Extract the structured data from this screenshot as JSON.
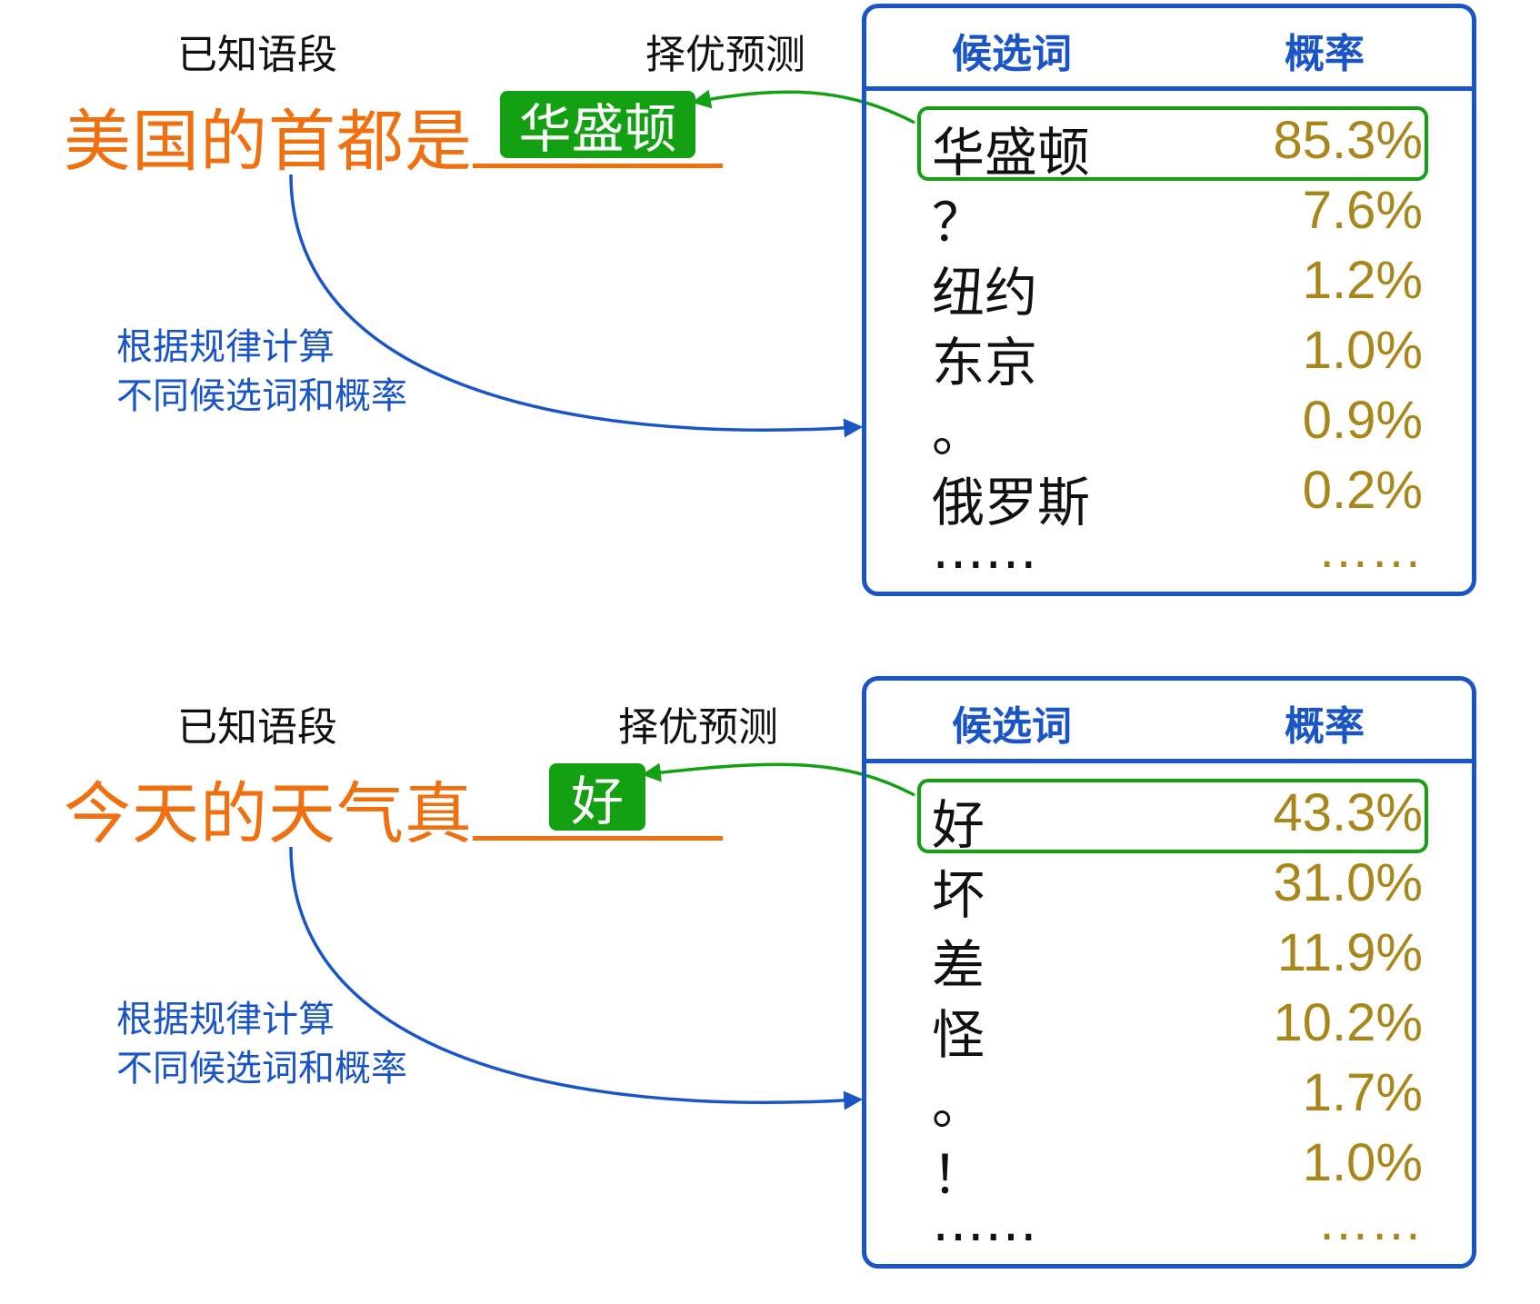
{
  "panels": [
    {
      "known_label": "已知语段",
      "prompt": "美国的首都是",
      "pred_label": "择优预测",
      "prediction": "华盛顿",
      "hint_line1": "根据规律计算",
      "hint_line2": "不同候选词和概率",
      "table": {
        "header_word": "候选词",
        "header_prob": "概率",
        "rows": [
          {
            "word": "华盛顿",
            "prob": "85.3%"
          },
          {
            "word": "？",
            "prob": "7.6%"
          },
          {
            "word": "纽约",
            "prob": "1.2%"
          },
          {
            "word": "东京",
            "prob": "1.0%"
          },
          {
            "word": "。",
            "prob": "0.9%"
          },
          {
            "word": "俄罗斯",
            "prob": "0.2%"
          },
          {
            "word": "……",
            "prob": "……"
          }
        ]
      }
    },
    {
      "known_label": "已知语段",
      "prompt": "今天的天气真",
      "pred_label": "择优预测",
      "prediction": "好",
      "hint_line1": "根据规律计算",
      "hint_line2": "不同候选词和概率",
      "table": {
        "header_word": "候选词",
        "header_prob": "概率",
        "rows": [
          {
            "word": "好",
            "prob": "43.3%"
          },
          {
            "word": "坏",
            "prob": "31.0%"
          },
          {
            "word": "差",
            "prob": "11.9%"
          },
          {
            "word": "怪",
            "prob": "10.2%"
          },
          {
            "word": "。",
            "prob": "1.7%"
          },
          {
            "word": "！",
            "prob": "1.0%"
          },
          {
            "word": "……",
            "prob": "……"
          }
        ]
      }
    }
  ],
  "colors": {
    "prompt": "#f07010",
    "accent_blue": "#1a55c8",
    "select_green": "#13a013",
    "prob_gold": "#a8861a"
  }
}
